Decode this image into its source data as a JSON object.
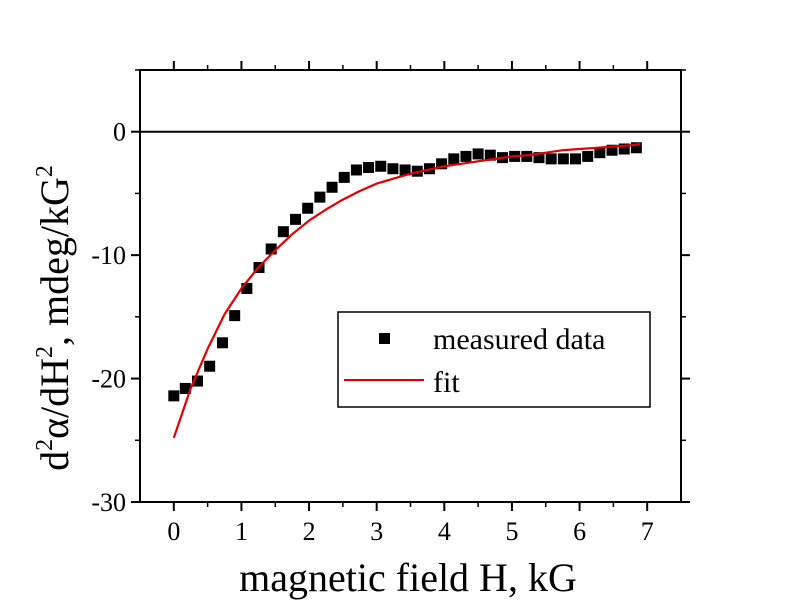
{
  "chart_data": {
    "type": "scatter",
    "xlabel": "magnetic field H, kG",
    "ylabel": {
      "prefix": "d",
      "sup1": "2",
      "mid": "α/dH",
      "sup2": "2",
      "unit": ", mdeg/kG",
      "sup3": "2"
    },
    "xlim": [
      -0.5,
      7.5
    ],
    "ylim": [
      -30,
      5
    ],
    "x_ticks": [
      "0",
      "1",
      "2",
      "3",
      "4",
      "5",
      "6",
      "7"
    ],
    "y_ticks": [
      "0",
      "-10",
      "-20",
      "-30"
    ],
    "zero_line": true,
    "grid": false,
    "legend_position": "lower-right",
    "series": [
      {
        "name": "measured data",
        "kind": "scatter",
        "marker": "square",
        "color": "#000000",
        "x": [
          0.0,
          0.17,
          0.35,
          0.53,
          0.72,
          0.9,
          1.08,
          1.26,
          1.44,
          1.62,
          1.8,
          1.98,
          2.16,
          2.34,
          2.52,
          2.7,
          2.88,
          3.06,
          3.24,
          3.42,
          3.6,
          3.78,
          3.96,
          4.14,
          4.32,
          4.5,
          4.68,
          4.86,
          5.04,
          5.22,
          5.4,
          5.58,
          5.76,
          5.94,
          6.12,
          6.3,
          6.48,
          6.66,
          6.84
        ],
        "y": [
          -21.4,
          -20.8,
          -20.2,
          -19.0,
          -17.1,
          -14.9,
          -12.7,
          -11.0,
          -9.5,
          -8.1,
          -7.1,
          -6.2,
          -5.3,
          -4.5,
          -3.7,
          -3.1,
          -2.9,
          -2.8,
          -3.0,
          -3.1,
          -3.2,
          -3.0,
          -2.6,
          -2.2,
          -2.0,
          -1.8,
          -1.9,
          -2.1,
          -2.0,
          -2.0,
          -2.1,
          -2.2,
          -2.2,
          -2.2,
          -2.0,
          -1.7,
          -1.5,
          -1.4,
          -1.3
        ]
      },
      {
        "name": "fit",
        "kind": "line",
        "color": "#e00000",
        "x": [
          0.0,
          0.25,
          0.5,
          0.75,
          1.0,
          1.25,
          1.5,
          1.75,
          2.0,
          2.25,
          2.5,
          2.75,
          3.0,
          3.25,
          3.5,
          3.75,
          4.0,
          4.25,
          4.5,
          4.75,
          5.0,
          5.25,
          5.5,
          5.75,
          6.0,
          6.25,
          6.5,
          6.75,
          6.9
        ],
        "y": [
          -24.8,
          -20.8,
          -17.6,
          -14.8,
          -12.7,
          -11.0,
          -9.6,
          -8.3,
          -7.2,
          -6.3,
          -5.5,
          -4.8,
          -4.2,
          -3.8,
          -3.4,
          -3.1,
          -2.8,
          -2.6,
          -2.4,
          -2.2,
          -2.0,
          -1.9,
          -1.7,
          -1.5,
          -1.4,
          -1.3,
          -1.2,
          -1.1,
          -1.0
        ]
      }
    ]
  }
}
